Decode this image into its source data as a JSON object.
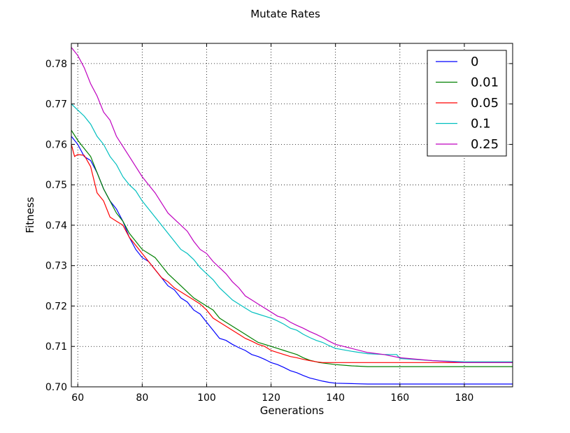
{
  "chart_data": {
    "type": "line",
    "title": "Mutate Rates",
    "xlabel": "Generations",
    "ylabel": "Fitness",
    "xlim": [
      58,
      195
    ],
    "ylim": [
      0.7,
      0.785
    ],
    "xticks": [
      60,
      80,
      100,
      120,
      140,
      160,
      180
    ],
    "yticks": [
      0.7,
      0.71,
      0.72,
      0.73,
      0.74,
      0.75,
      0.76,
      0.77,
      0.78
    ],
    "xtick_labels": [
      "60",
      "80",
      "100",
      "120",
      "140",
      "160",
      "180"
    ],
    "ytick_labels": [
      "0.70",
      "0.71",
      "0.72",
      "0.73",
      "0.74",
      "0.75",
      "0.76",
      "0.77",
      "0.78"
    ],
    "grid": true,
    "legend_position": "top-right",
    "series": [
      {
        "name": "0",
        "color": "#0000ff",
        "x": [
          58,
          60,
          62,
          64,
          66,
          68,
          70,
          72,
          74,
          76,
          78,
          80,
          82,
          84,
          86,
          88,
          90,
          92,
          94,
          96,
          98,
          100,
          102,
          104,
          106,
          108,
          110,
          112,
          114,
          116,
          118,
          120,
          122,
          124,
          126,
          128,
          130,
          132,
          134,
          136,
          138,
          140,
          145,
          150,
          160,
          170,
          180,
          195
        ],
        "y": [
          0.762,
          0.76,
          0.757,
          0.756,
          0.753,
          0.749,
          0.746,
          0.744,
          0.741,
          0.737,
          0.734,
          0.732,
          0.731,
          0.729,
          0.727,
          0.725,
          0.724,
          0.722,
          0.721,
          0.719,
          0.718,
          0.716,
          0.714,
          0.712,
          0.7115,
          0.7105,
          0.7097,
          0.709,
          0.708,
          0.7075,
          0.7068,
          0.706,
          0.7055,
          0.7048,
          0.704,
          0.7035,
          0.7028,
          0.7022,
          0.7018,
          0.7014,
          0.7011,
          0.7009,
          0.7008,
          0.7007,
          0.7007,
          0.7007,
          0.7007,
          0.7007
        ]
      },
      {
        "name": "0.01",
        "color": "#008000",
        "x": [
          58,
          60,
          62,
          64,
          66,
          68,
          70,
          72,
          74,
          76,
          78,
          80,
          82,
          84,
          86,
          88,
          90,
          92,
          94,
          96,
          98,
          100,
          102,
          104,
          106,
          108,
          110,
          112,
          114,
          116,
          118,
          120,
          122,
          124,
          126,
          128,
          130,
          132,
          135,
          140,
          145,
          150,
          160,
          170,
          180,
          195
        ],
        "y": [
          0.7635,
          0.761,
          0.759,
          0.757,
          0.753,
          0.749,
          0.746,
          0.743,
          0.741,
          0.738,
          0.736,
          0.734,
          0.733,
          0.732,
          0.73,
          0.728,
          0.7265,
          0.725,
          0.7235,
          0.722,
          0.721,
          0.72,
          0.719,
          0.717,
          0.716,
          0.715,
          0.714,
          0.713,
          0.712,
          0.711,
          0.7105,
          0.71,
          0.7095,
          0.709,
          0.7085,
          0.708,
          0.7072,
          0.7066,
          0.706,
          0.7055,
          0.7052,
          0.705,
          0.705,
          0.705,
          0.705,
          0.705
        ]
      },
      {
        "name": "0.05",
        "color": "#ff0000",
        "x": [
          58,
          59,
          60,
          62,
          64,
          66,
          68,
          70,
          72,
          74,
          76,
          78,
          80,
          82,
          84,
          86,
          88,
          90,
          92,
          94,
          96,
          98,
          100,
          102,
          104,
          106,
          108,
          110,
          112,
          114,
          116,
          118,
          120,
          122,
          124,
          126,
          128,
          130,
          132,
          134,
          136,
          140,
          145,
          150,
          160,
          170,
          180,
          195
        ],
        "y": [
          0.76,
          0.757,
          0.7575,
          0.7573,
          0.7545,
          0.748,
          0.746,
          0.742,
          0.741,
          0.74,
          0.737,
          0.735,
          0.733,
          0.731,
          0.729,
          0.727,
          0.726,
          0.7245,
          0.7235,
          0.7225,
          0.7215,
          0.7205,
          0.719,
          0.717,
          0.716,
          0.715,
          0.714,
          0.713,
          0.712,
          0.7113,
          0.7105,
          0.71,
          0.709,
          0.7085,
          0.708,
          0.7075,
          0.7072,
          0.7068,
          0.7065,
          0.7062,
          0.706,
          0.706,
          0.706,
          0.706,
          0.706,
          0.706,
          0.706,
          0.706
        ]
      },
      {
        "name": "0.1",
        "color": "#00bfbf",
        "x": [
          58,
          60,
          62,
          64,
          66,
          68,
          70,
          72,
          74,
          76,
          78,
          80,
          82,
          84,
          86,
          88,
          90,
          92,
          94,
          96,
          98,
          100,
          102,
          104,
          106,
          108,
          110,
          112,
          114,
          116,
          118,
          120,
          122,
          124,
          126,
          128,
          130,
          132,
          134,
          136,
          138,
          140,
          145,
          150,
          155,
          159,
          160,
          170,
          180,
          195
        ],
        "y": [
          0.77,
          0.7685,
          0.767,
          0.765,
          0.762,
          0.76,
          0.757,
          0.755,
          0.752,
          0.75,
          0.7485,
          0.746,
          0.744,
          0.742,
          0.74,
          0.738,
          0.736,
          0.734,
          0.733,
          0.7315,
          0.7295,
          0.728,
          0.7265,
          0.7245,
          0.723,
          0.7215,
          0.7205,
          0.7195,
          0.7185,
          0.718,
          0.7175,
          0.717,
          0.7163,
          0.7155,
          0.7145,
          0.714,
          0.713,
          0.7122,
          0.7115,
          0.711,
          0.7102,
          0.7095,
          0.7088,
          0.7082,
          0.708,
          0.708,
          0.707,
          0.7065,
          0.7062,
          0.7062
        ]
      },
      {
        "name": "0.25",
        "color": "#bf00bf",
        "x": [
          58,
          60,
          62,
          64,
          66,
          68,
          70,
          72,
          74,
          76,
          78,
          80,
          82,
          84,
          86,
          88,
          90,
          92,
          94,
          96,
          98,
          100,
          102,
          104,
          106,
          108,
          110,
          112,
          114,
          116,
          118,
          120,
          122,
          124,
          126,
          128,
          130,
          132,
          134,
          136,
          138,
          140,
          145,
          150,
          155,
          160,
          170,
          180,
          195
        ],
        "y": [
          0.784,
          0.782,
          0.779,
          0.775,
          0.772,
          0.768,
          0.766,
          0.762,
          0.7595,
          0.757,
          0.7545,
          0.752,
          0.75,
          0.748,
          0.7455,
          0.743,
          0.7415,
          0.74,
          0.7385,
          0.736,
          0.734,
          0.733,
          0.731,
          0.7295,
          0.728,
          0.726,
          0.7245,
          0.7225,
          0.7215,
          0.7205,
          0.7195,
          0.7185,
          0.7175,
          0.717,
          0.716,
          0.7152,
          0.7145,
          0.7137,
          0.713,
          0.7122,
          0.7113,
          0.7105,
          0.7095,
          0.7085,
          0.708,
          0.7072,
          0.7065,
          0.706,
          0.706
        ]
      }
    ]
  }
}
